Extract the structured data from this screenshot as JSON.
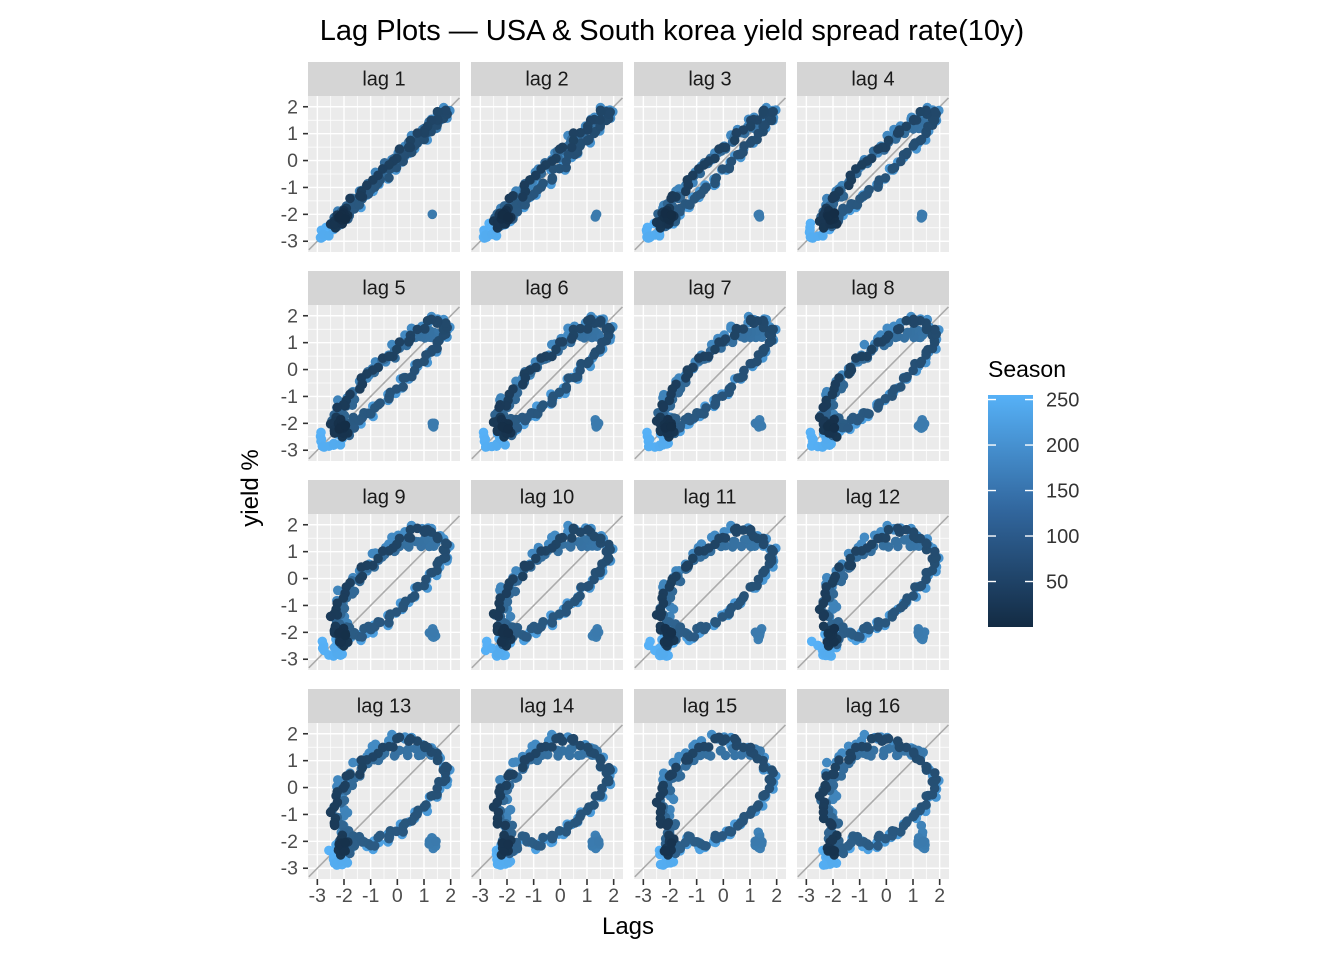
{
  "title": "Lag Plots — USA & South korea yield spread rate(10y)",
  "x_axis_title": "Lags",
  "y_axis_title": "yield %",
  "axes": {
    "x_ticks": [
      "-3",
      "-2",
      "-1",
      "0",
      "1",
      "2"
    ],
    "y_ticks": [
      "2",
      "1",
      "0",
      "-1",
      "-2",
      "-3"
    ],
    "x_tick_values": [
      -3,
      -2,
      -1,
      0,
      1,
      2
    ],
    "y_tick_values": [
      2,
      1,
      0,
      -1,
      -2,
      -3
    ],
    "x_domain": [
      -3.35,
      2.35
    ],
    "y_domain": [
      -3.4,
      2.4
    ]
  },
  "legend": {
    "title": "Season",
    "tick_labels": [
      "250",
      "200",
      "150",
      "100",
      "50"
    ],
    "tick_values": [
      250,
      200,
      150,
      100,
      50
    ],
    "domain": [
      0,
      255
    ],
    "color_low": "#132B43",
    "color_high": "#56B1F7"
  },
  "colors": {
    "panel_bg": "#EBEBEB",
    "grid": "#FFFFFF",
    "strip_bg": "#D5D5D5",
    "strip_text": "#1A1A1A",
    "tick_text": "#4D4D4D",
    "axis_title_text": "#000000",
    "title_text": "#000000",
    "ref_line": "#ABABAB",
    "tick_mark": "#333333"
  },
  "chart_data": {
    "type": "scatter",
    "title": "Lag Plots — USA & South korea yield spread rate(10y)",
    "xlabel": "Lags",
    "ylabel": "yield %",
    "facet_variable": "lag",
    "facets": [
      "lag 1",
      "lag 2",
      "lag 3",
      "lag 4",
      "lag 5",
      "lag 6",
      "lag 7",
      "lag 8",
      "lag 9",
      "lag 10",
      "lag 11",
      "lag 12",
      "lag 13",
      "lag 14",
      "lag 15",
      "lag 16"
    ],
    "lags": [
      1,
      2,
      3,
      4,
      5,
      6,
      7,
      8,
      9,
      10,
      11,
      12,
      13,
      14,
      15,
      16
    ],
    "x_range": [
      -3.35,
      2.35
    ],
    "y_range": [
      -3.4,
      2.4
    ],
    "grid": "on",
    "legend_position": "right",
    "color_by": "Season",
    "n_seasons": 255,
    "series_anchor_start": 1,
    "series_anchor_step": 4,
    "series_anchors": [
      -2.1,
      -2.0,
      -2.2,
      -1.95,
      -2.3,
      -2.45,
      -2.15,
      -1.7,
      -1.1,
      -0.4,
      0.3,
      0.9,
      1.5,
      1.8,
      1.75,
      1.4,
      0.9,
      0.4,
      -0.1,
      -0.7,
      -1.2,
      -1.6,
      -1.9,
      -2.2,
      -1.8,
      -2.4,
      -2.1,
      -1.7,
      -1.2,
      -0.6,
      0.1,
      0.7,
      1.1,
      1.28,
      1.35,
      1.25,
      1.32,
      1.3,
      -2.1,
      -2.0,
      -2.25,
      -1.6,
      -0.9,
      -0.2,
      0.6,
      1.3,
      1.8,
      1.9,
      1.5,
      1.0,
      0.45,
      -0.1,
      -0.65,
      -1.15,
      -1.6,
      -1.95,
      -2.25,
      -1.9,
      -2.35,
      -2.1,
      -2.5,
      -2.8,
      -2.95,
      -2.6
    ],
    "series_overrides": {
      "150": 1.31,
      "151": -2.0,
      "152": -2.1
    }
  }
}
